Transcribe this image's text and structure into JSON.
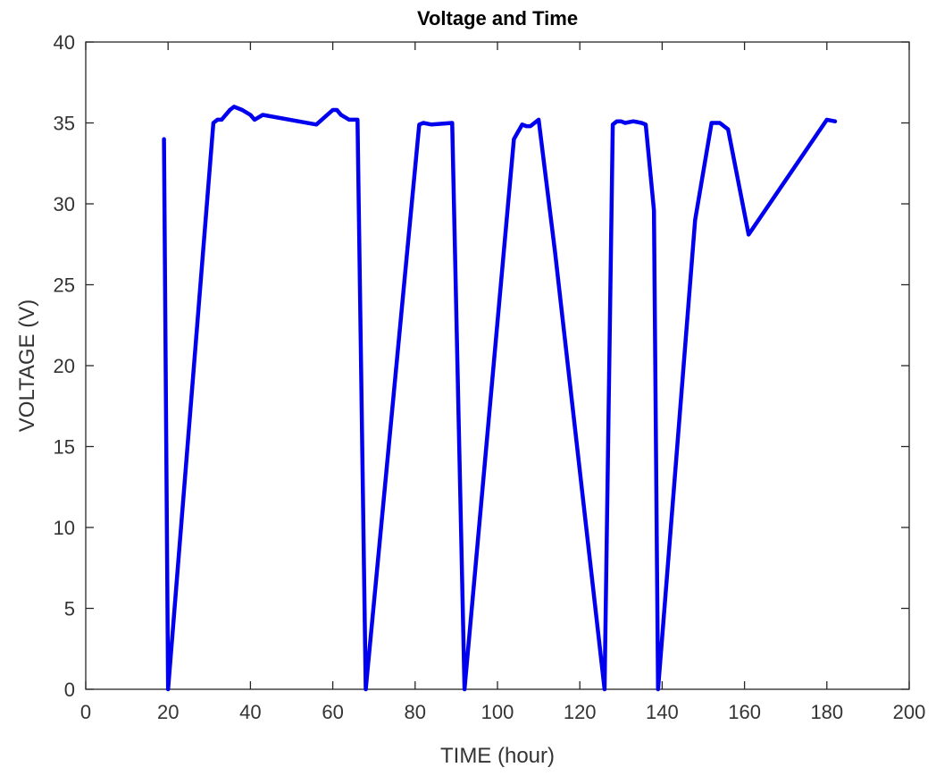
{
  "chart_data": {
    "type": "line",
    "title": "Voltage and Time",
    "xlabel": "TIME (hour)",
    "ylabel": "VOLTAGE (V)",
    "xlim": [
      0,
      200
    ],
    "ylim": [
      0,
      40
    ],
    "xticks": [
      0,
      20,
      40,
      60,
      80,
      100,
      120,
      140,
      160,
      180,
      200
    ],
    "yticks": [
      0,
      5,
      10,
      15,
      20,
      25,
      30,
      35,
      40
    ],
    "grid": false,
    "series": [
      {
        "color": "#0000ee",
        "x": [
          19,
          20,
          31,
          32,
          33,
          35,
          36,
          38,
          40,
          41,
          43,
          56,
          60,
          61,
          62,
          64,
          66,
          68,
          81,
          82,
          84,
          89,
          92,
          104,
          106,
          107,
          108,
          109,
          110,
          114,
          126,
          128,
          129,
          130,
          131,
          133,
          135,
          136,
          138,
          139,
          148,
          152,
          154,
          156,
          161,
          180,
          182
        ],
        "y": [
          34,
          0,
          35,
          35.2,
          35.2,
          35.8,
          36,
          35.8,
          35.5,
          35.2,
          35.5,
          34.9,
          35.8,
          35.8,
          35.5,
          35.2,
          35.2,
          0,
          34.9,
          35,
          34.9,
          35,
          0,
          34,
          34.9,
          34.8,
          34.8,
          35,
          35.2,
          27,
          0,
          34.9,
          35.1,
          35.1,
          35,
          35.1,
          35,
          34.9,
          29.6,
          0,
          29,
          35,
          35,
          34.6,
          28.1,
          35.2,
          35.1
        ]
      }
    ]
  }
}
